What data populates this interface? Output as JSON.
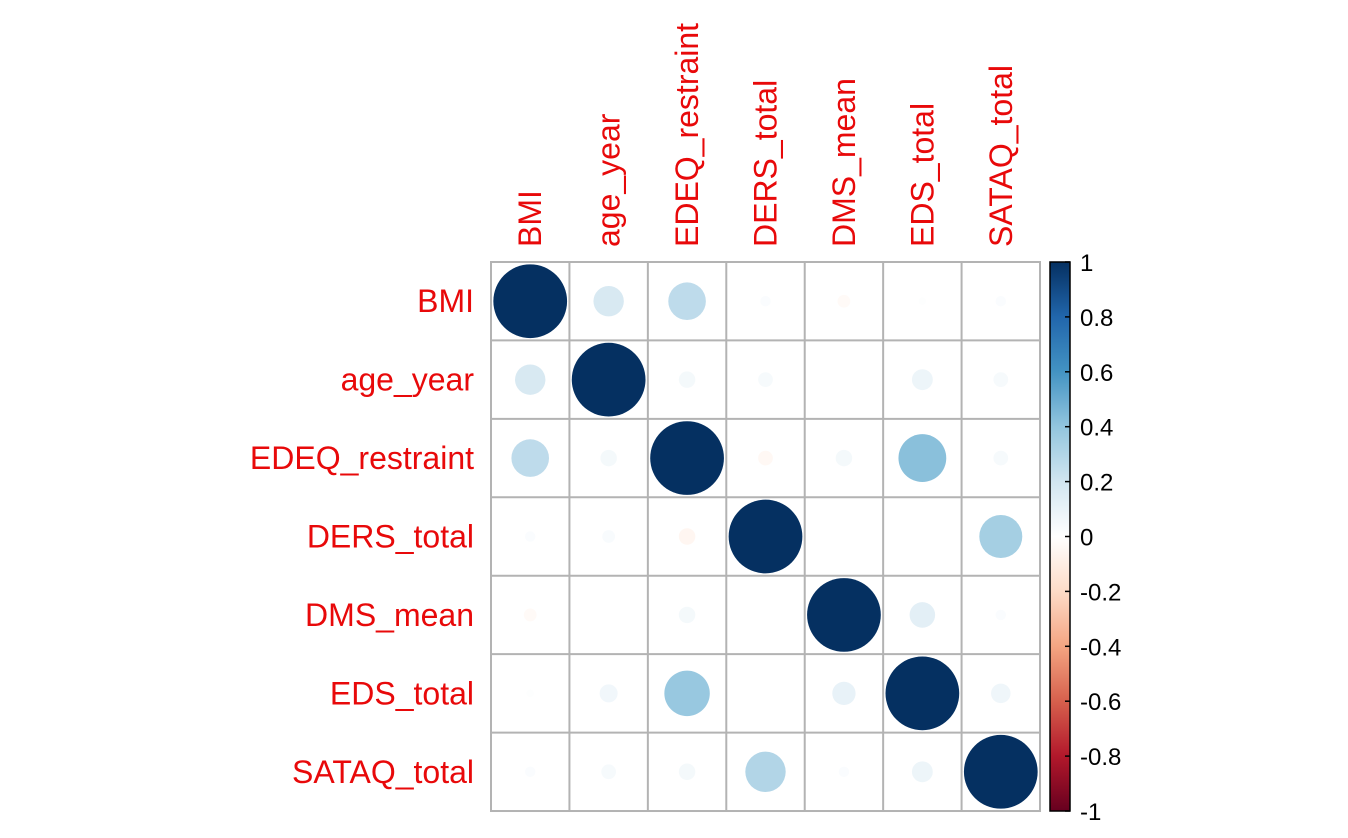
{
  "chart_data": {
    "type": "heatmap",
    "style": "circle",
    "variables": [
      "BMI",
      "age_year",
      "EDEQ_restraint",
      "DERS_total",
      "DMS_mean",
      "EDS_total",
      "SATAQ_total"
    ],
    "matrix": [
      [
        1.0,
        0.17,
        0.26,
        0.02,
        -0.03,
        0.01,
        0.02
      ],
      [
        0.17,
        1.0,
        0.05,
        0.04,
        0.0,
        0.08,
        0.04
      ],
      [
        0.26,
        0.05,
        1.0,
        -0.04,
        0.05,
        0.42,
        0.04
      ],
      [
        0.02,
        0.03,
        -0.05,
        1.0,
        0.0,
        0.0,
        0.34
      ],
      [
        -0.03,
        0.0,
        0.05,
        0.0,
        1.0,
        0.12,
        0.02
      ],
      [
        0.01,
        0.06,
        0.38,
        0.0,
        0.1,
        1.0,
        0.07
      ],
      [
        0.02,
        0.04,
        0.05,
        0.3,
        0.02,
        0.08,
        1.0
      ]
    ],
    "colorbar": {
      "range": [
        -1,
        1
      ],
      "tick_labels": [
        "1",
        "0.8",
        "0.6",
        "0.4",
        "0.2",
        "0",
        "-0.2",
        "-0.4",
        "-0.6",
        "-0.8",
        "-1"
      ],
      "colors": [
        "#67001F",
        "#B2182B",
        "#D6604D",
        "#F4A582",
        "#FDDBC7",
        "#FFFFFF",
        "#D1E5F0",
        "#92C5DE",
        "#4393C3",
        "#2166AC",
        "#053061"
      ]
    },
    "label_color": "#e8090a",
    "grid_color": "#b3b3b3"
  }
}
